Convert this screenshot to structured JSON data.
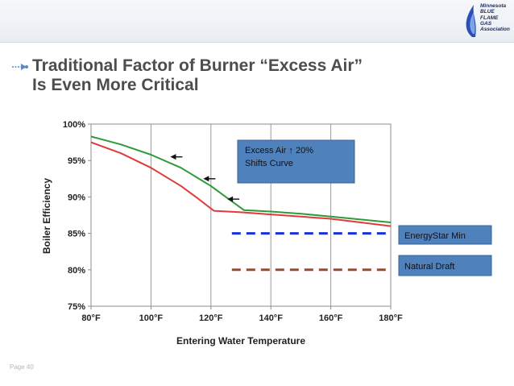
{
  "slide": {
    "title_line1": "Traditional Factor of Burner “Excess Air”",
    "title_line2": "Is Even More Critical",
    "footer": "Page 40"
  },
  "logo": {
    "lines": [
      "Minnesota",
      "BLUE",
      "FLAME",
      "GAS",
      "Association"
    ],
    "icon": "blue-flame-icon"
  },
  "colors": {
    "green": "#2e9a38",
    "red": "#e03a3a",
    "blue": "#1a30d8",
    "brown": "#9a4a2e",
    "callout": "#4f81bd"
  },
  "chart_data": {
    "type": "line",
    "xlabel": "Entering Water Temperature",
    "ylabel": "Boiler Efficiency",
    "xlim": [
      80,
      180
    ],
    "ylim": [
      75,
      100
    ],
    "xticks": [
      "80°F",
      "100°F",
      "120°F",
      "140°F",
      "160°F",
      "180°F"
    ],
    "xtick_values": [
      80,
      100,
      120,
      140,
      160,
      180
    ],
    "yticks": [
      "75%",
      "80%",
      "85%",
      "90%",
      "95%",
      "100%"
    ],
    "ytick_values": [
      75,
      80,
      85,
      90,
      95,
      100
    ],
    "grid": "vertical",
    "series": [
      {
        "color": "#2e9a38",
        "x": [
          80,
          90,
          100,
          110,
          120,
          125,
          131,
          140,
          150,
          160,
          170,
          180
        ],
        "y": [
          98.3,
          97.2,
          95.8,
          94.0,
          91.5,
          90.0,
          88.2,
          88.0,
          87.7,
          87.3,
          86.9,
          86.5
        ]
      },
      {
        "color": "#e03a3a",
        "x": [
          80,
          90,
          100,
          110,
          115,
          121,
          130,
          140,
          150,
          160,
          170,
          180
        ],
        "y": [
          97.5,
          96.0,
          94.0,
          91.5,
          90.0,
          88.1,
          87.9,
          87.6,
          87.3,
          87.0,
          86.5,
          86.0
        ]
      },
      {
        "color": "#1a30d8",
        "dashed": true,
        "x": [
          127,
          180
        ],
        "y": [
          85,
          85
        ]
      },
      {
        "color": "#9a4a2e",
        "dashed": true,
        "x": [
          127,
          180
        ],
        "y": [
          80,
          80
        ]
      }
    ],
    "arrows": [
      {
        "x": 107,
        "y": 95.5
      },
      {
        "x": 118,
        "y": 92.5
      },
      {
        "x": 126,
        "y": 89.7
      }
    ],
    "annotations": {
      "excess_air": {
        "before": "Excess Air",
        "glyph": "↑",
        "after": "20%",
        "line2": "Shifts Curve"
      },
      "energystar": "EnergyStar Min",
      "natural_draft": "Natural Draft"
    }
  }
}
